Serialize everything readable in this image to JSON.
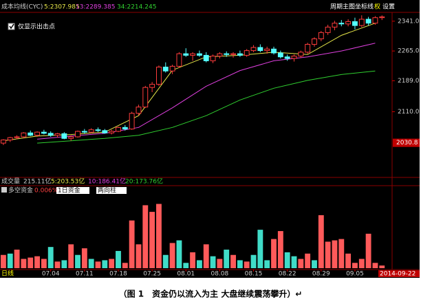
{
  "toolbar": {
    "indicator": "成本均线(CYC)",
    "buttons": [
      "周期",
      "主图",
      "坐标线",
      "权",
      "设置"
    ],
    "checkbox": "仅显示出击点"
  },
  "volume_line": {
    "label": "成交量",
    "total": "215.11亿",
    "ma": [
      "5:203.53亿",
      "10:186.41亿",
      "20:173.76亿"
    ]
  },
  "fund_panel": {
    "label": "多空资金",
    "change": "0.006%",
    "period": "1日资金",
    "mode": "两向柱"
  },
  "footer": {
    "period": "日线",
    "date": "2014-09-22"
  },
  "caption": "（图 1　资金仍以流入为主  大盘继续震荡攀升）↵",
  "chart_data": [
    {
      "type": "candlestick",
      "up_color": "#ff3c3c",
      "down_color": "#54ffff",
      "xlim": [
        -0.5,
        57.5
      ],
      "ylim": [
        1946,
        2360
      ],
      "yticks": [
        {
          "value": 2110,
          "label": "2110.0"
        },
        {
          "value": 2189,
          "label": "2189.0"
        },
        {
          "value": 2265,
          "label": "2265.0"
        },
        {
          "value": 2341,
          "label": "2341.0"
        }
      ],
      "marker": 2030.8,
      "open": [
        2030,
        2038,
        2044,
        2046,
        2056,
        2050,
        2058,
        2055,
        2050,
        2054,
        2042,
        2046,
        2060,
        2058,
        2064,
        2062,
        2056,
        2060,
        2070,
        2066,
        2106,
        2122,
        2172,
        2180,
        2224,
        2214,
        2226,
        2258,
        2254,
        2258,
        2254,
        2240,
        2252,
        2258,
        2256,
        2258,
        2254,
        2266,
        2274,
        2266,
        2270,
        2260,
        2250,
        2246,
        2252,
        2262,
        2282,
        2296,
        2312,
        2326,
        2336,
        2334,
        2340,
        2330,
        2346,
        2336,
        2350
      ],
      "high": [
        2040,
        2046,
        2050,
        2058,
        2062,
        2060,
        2064,
        2060,
        2056,
        2058,
        2050,
        2062,
        2066,
        2068,
        2070,
        2066,
        2064,
        2072,
        2076,
        2110,
        2128,
        2176,
        2186,
        2228,
        2236,
        2230,
        2262,
        2272,
        2262,
        2266,
        2262,
        2256,
        2262,
        2264,
        2262,
        2266,
        2270,
        2280,
        2282,
        2276,
        2276,
        2266,
        2256,
        2256,
        2266,
        2286,
        2300,
        2316,
        2332,
        2342,
        2344,
        2346,
        2350,
        2356,
        2352,
        2354,
        2356
      ],
      "low": [
        2025,
        2033,
        2040,
        2042,
        2048,
        2046,
        2052,
        2046,
        2044,
        2040,
        2036,
        2044,
        2054,
        2055,
        2058,
        2054,
        2052,
        2058,
        2062,
        2064,
        2100,
        2120,
        2160,
        2176,
        2210,
        2206,
        2222,
        2250,
        2240,
        2250,
        2236,
        2234,
        2246,
        2250,
        2248,
        2250,
        2250,
        2262,
        2262,
        2258,
        2256,
        2246,
        2240,
        2238,
        2248,
        2258,
        2276,
        2290,
        2306,
        2318,
        2328,
        2328,
        2320,
        2326,
        2330,
        2332,
        2344
      ],
      "close": [
        2038,
        2044,
        2046,
        2056,
        2050,
        2058,
        2055,
        2050,
        2054,
        2042,
        2046,
        2060,
        2058,
        2064,
        2062,
        2056,
        2060,
        2070,
        2066,
        2106,
        2122,
        2172,
        2180,
        2224,
        2214,
        2226,
        2258,
        2254,
        2258,
        2254,
        2240,
        2252,
        2258,
        2256,
        2258,
        2254,
        2266,
        2274,
        2266,
        2270,
        2260,
        2250,
        2246,
        2252,
        2262,
        2282,
        2296,
        2312,
        2326,
        2336,
        2334,
        2340,
        2330,
        2346,
        2336,
        2350,
        2352
      ],
      "lines": [
        {
          "name": "5:2307.985",
          "color": "#e8e84a",
          "x": [
            0,
            5,
            10,
            15,
            20,
            25,
            30,
            35,
            40,
            45,
            50,
            55
          ],
          "values": [
            2036,
            2048,
            2052,
            2058,
            2100,
            2216,
            2250,
            2254,
            2262,
            2256,
            2305,
            2336
          ]
        },
        {
          "name": "13:2289.385",
          "color": "#e040e0",
          "x": [
            5,
            10,
            15,
            20,
            25,
            30,
            35,
            40,
            45,
            50,
            55
          ],
          "values": [
            2040,
            2048,
            2055,
            2070,
            2120,
            2175,
            2215,
            2240,
            2250,
            2265,
            2285
          ]
        },
        {
          "name": "34:2214.245",
          "color": "#30d030",
          "x": [
            5,
            10,
            15,
            20,
            25,
            30,
            35,
            40,
            45,
            50,
            55
          ],
          "values": [
            2030,
            2036,
            2042,
            2050,
            2070,
            2100,
            2140,
            2170,
            2190,
            2205,
            2214
          ]
        }
      ]
    },
    {
      "type": "bar",
      "xlim": [
        -0.5,
        57.5
      ],
      "ylim": [
        0,
        110
      ],
      "xticks": [
        {
          "value": 7,
          "label": "07.04"
        },
        {
          "value": 12,
          "label": "07.11"
        },
        {
          "value": 17,
          "label": "07.18"
        },
        {
          "value": 22,
          "label": "07.25"
        },
        {
          "value": 27,
          "label": "08.01"
        },
        {
          "value": 32,
          "label": "08.08"
        },
        {
          "value": 37,
          "label": "08.15"
        },
        {
          "value": 42,
          "label": "08.22"
        },
        {
          "value": 47,
          "label": "08.29"
        },
        {
          "value": 52,
          "label": "09.05"
        }
      ],
      "series": [
        {
          "color": "#ff5a5a",
          "values": [
            20,
            null,
            28,
            14,
            16,
            18,
            14,
            null,
            10,
            null,
            36,
            null,
            30,
            null,
            10,
            null,
            14,
            null,
            8,
            72,
            36,
            95,
            85,
            97,
            null,
            38,
            null,
            null,
            24,
            null,
            36,
            null,
            14,
            null,
            20,
            null,
            10,
            null,
            null,
            null,
            44,
            56,
            null,
            null,
            14,
            22,
            null,
            80,
            40,
            42,
            44,
            22,
            8,
            14,
            52,
            8,
            4
          ]
        },
        {
          "color": "#40dcc8",
          "values": [
            null,
            22,
            null,
            null,
            null,
            null,
            null,
            32,
            null,
            12,
            null,
            20,
            null,
            14,
            null,
            12,
            null,
            26,
            null,
            null,
            null,
            null,
            null,
            null,
            20,
            null,
            42,
            8,
            null,
            12,
            null,
            18,
            null,
            28,
            null,
            12,
            null,
            20,
            58,
            12,
            null,
            null,
            24,
            18,
            null,
            null,
            12,
            null,
            null,
            null,
            null,
            null,
            null,
            null,
            null,
            null,
            null
          ]
        }
      ]
    }
  ]
}
